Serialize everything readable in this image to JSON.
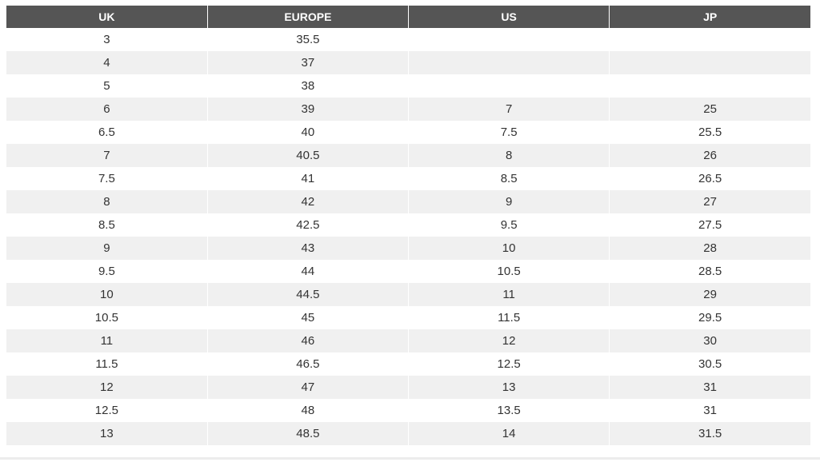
{
  "headers": [
    "UK",
    "EUROPE",
    "US",
    "JP"
  ],
  "rows": [
    [
      "3",
      "35.5",
      "",
      ""
    ],
    [
      "4",
      "37",
      "",
      ""
    ],
    [
      "5",
      "38",
      "",
      ""
    ],
    [
      "6",
      "39",
      "7",
      "25"
    ],
    [
      "6.5",
      "40",
      "7.5",
      "25.5"
    ],
    [
      "7",
      "40.5",
      "8",
      "26"
    ],
    [
      "7.5",
      "41",
      "8.5",
      "26.5"
    ],
    [
      "8",
      "42",
      "9",
      "27"
    ],
    [
      "8.5",
      "42.5",
      "9.5",
      "27.5"
    ],
    [
      "9",
      "43",
      "10",
      "28"
    ],
    [
      "9.5",
      "44",
      "10.5",
      "28.5"
    ],
    [
      "10",
      "44.5",
      "11",
      "29"
    ],
    [
      "10.5",
      "45",
      "11.5",
      "29.5"
    ],
    [
      "11",
      "46",
      "12",
      "30"
    ],
    [
      "11.5",
      "46.5",
      "12.5",
      "30.5"
    ],
    [
      "12",
      "47",
      "13",
      "31"
    ],
    [
      "12.5",
      "48",
      "13.5",
      "31"
    ],
    [
      "13",
      "48.5",
      "14",
      "31.5"
    ]
  ],
  "colors": {
    "header_bg": "#555555",
    "header_text": "#ffffff",
    "row_alt_bg": "#f0f0f0",
    "cell_text": "#333333"
  }
}
